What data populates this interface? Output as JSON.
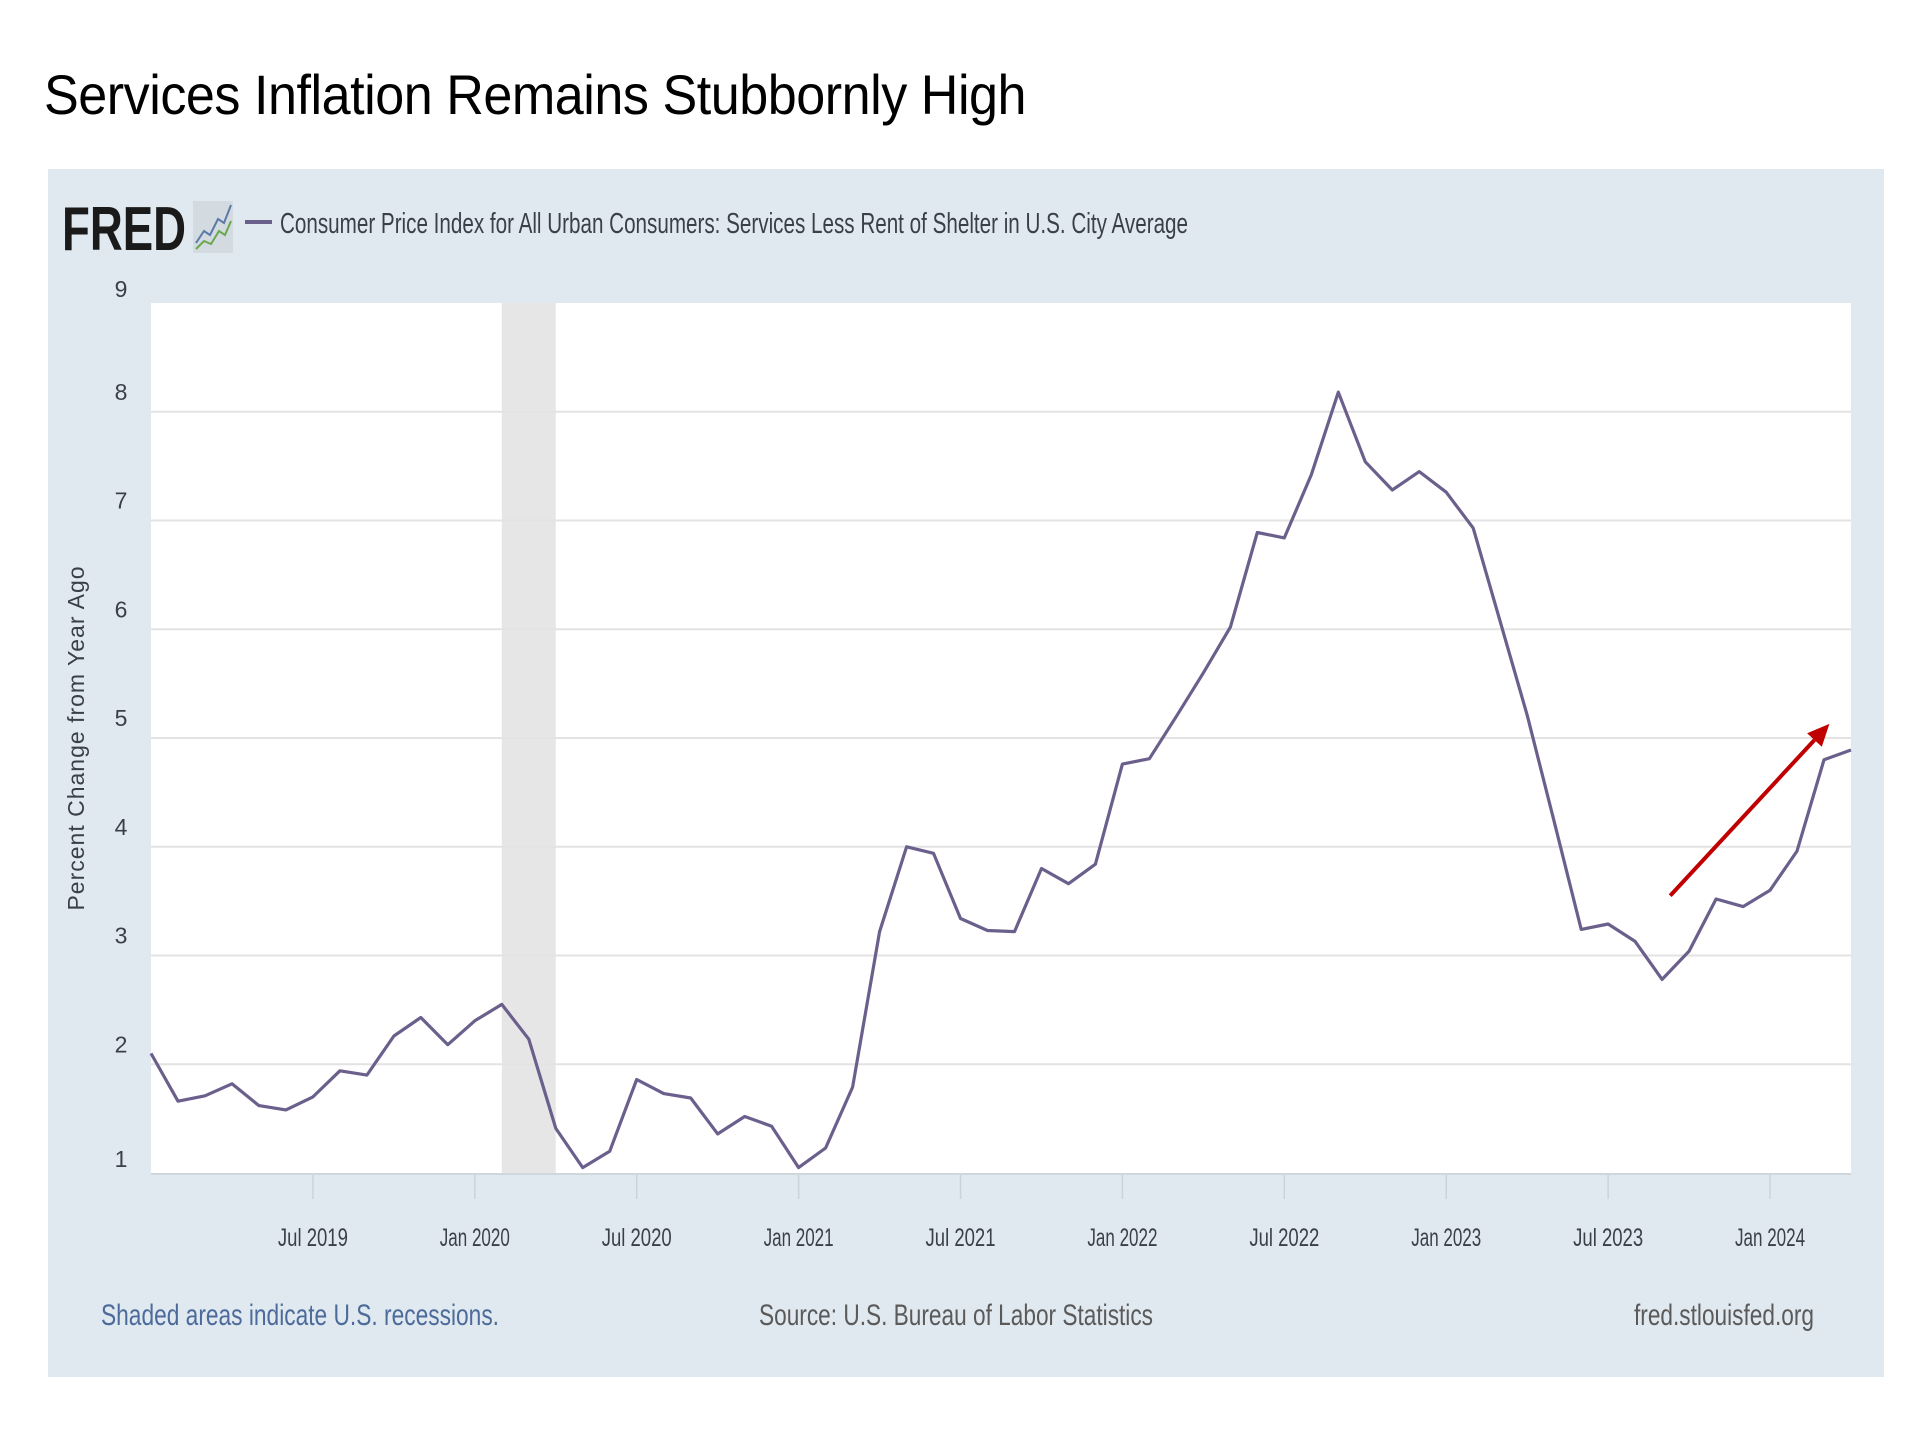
{
  "slide": {
    "title": "Services Inflation Remains Stubbornly High"
  },
  "fred": {
    "logo_text": "FRED",
    "logo_icon": "fred-chart-icon",
    "footer_left": "Shaded areas indicate U.S. recessions.",
    "footer_center": "Source: U.S. Bureau of Labor Statistics",
    "footer_right": "fred.stlouisfed.org"
  },
  "colors": {
    "series": "#6b5f8c",
    "arrow": "#c00000",
    "panel": "#e1e9f0",
    "recession": "#e6e6e6",
    "link": "#4c6b9a"
  },
  "chart_data": {
    "type": "line",
    "title": "",
    "legend": [
      "Consumer Price Index for All Urban Consumers: Services Less Rent of Shelter in U.S. City Average"
    ],
    "legend_position": "top-left",
    "xlabel": "",
    "ylabel": "Percent Change from Year Ago",
    "ylim": [
      1,
      9
    ],
    "yticks": [
      1,
      2,
      3,
      4,
      5,
      6,
      7,
      8,
      9
    ],
    "grid": true,
    "x_start": "2019-01",
    "x_end": "2024-04",
    "xticks": [
      {
        "label": "Jul 2019",
        "month_index": 6
      },
      {
        "label": "Jan 2020",
        "month_index": 12
      },
      {
        "label": "Jul 2020",
        "month_index": 18
      },
      {
        "label": "Jan 2021",
        "month_index": 24
      },
      {
        "label": "Jul 2021",
        "month_index": 30
      },
      {
        "label": "Jan 2022",
        "month_index": 36
      },
      {
        "label": "Jul 2022",
        "month_index": 42
      },
      {
        "label": "Jan 2023",
        "month_index": 48
      },
      {
        "label": "Jul 2023",
        "month_index": 54
      },
      {
        "label": "Jan 2024",
        "month_index": 60
      }
    ],
    "recessions": [
      {
        "start_month_index": 13,
        "end_month_index": 15,
        "label": "2020 recession"
      }
    ],
    "series": [
      {
        "name": "Consumer Price Index for All Urban Consumers: Services Less Rent of Shelter in U.S. City Average",
        "x": [
          "2019-01",
          "2019-02",
          "2019-03",
          "2019-04",
          "2019-05",
          "2019-06",
          "2019-07",
          "2019-08",
          "2019-09",
          "2019-10",
          "2019-11",
          "2019-12",
          "2020-01",
          "2020-02",
          "2020-03",
          "2020-04",
          "2020-05",
          "2020-06",
          "2020-07",
          "2020-08",
          "2020-09",
          "2020-10",
          "2020-11",
          "2020-12",
          "2021-01",
          "2021-02",
          "2021-03",
          "2021-04",
          "2021-05",
          "2021-06",
          "2021-07",
          "2021-08",
          "2021-09",
          "2021-10",
          "2021-11",
          "2021-12",
          "2022-01",
          "2022-02",
          "2022-03",
          "2022-04",
          "2022-05",
          "2022-06",
          "2022-07",
          "2022-08",
          "2022-09",
          "2022-10",
          "2022-11",
          "2022-12",
          "2023-01",
          "2023-02",
          "2023-03",
          "2023-04",
          "2023-05",
          "2023-06",
          "2023-07",
          "2023-08",
          "2023-09",
          "2023-10",
          "2023-11",
          "2023-12",
          "2024-01",
          "2024-02",
          "2024-03",
          "2024-04"
        ],
        "values": [
          2.1,
          1.66,
          1.71,
          1.82,
          1.62,
          1.58,
          1.7,
          1.94,
          1.9,
          2.26,
          2.43,
          2.18,
          2.4,
          2.55,
          2.23,
          1.41,
          1.05,
          1.2,
          1.86,
          1.73,
          1.69,
          1.36,
          1.52,
          1.43,
          1.05,
          1.23,
          1.79,
          3.22,
          4.0,
          3.94,
          3.34,
          3.23,
          3.22,
          3.8,
          3.66,
          3.84,
          4.76,
          4.81,
          5.2,
          5.6,
          6.02,
          6.89,
          6.84,
          7.42,
          8.18,
          7.54,
          7.28,
          7.45,
          7.26,
          6.93,
          6.07,
          5.21,
          4.23,
          3.24,
          3.29,
          3.13,
          2.78,
          3.04,
          3.52,
          3.45,
          3.6,
          3.96,
          4.8,
          4.89
        ]
      }
    ],
    "annotations": [
      {
        "type": "arrow",
        "description": "red upward trend arrow",
        "from": {
          "month_index": 56.3,
          "value": 3.55
        },
        "to": {
          "month_index": 62.2,
          "value": 5.13
        }
      }
    ]
  }
}
